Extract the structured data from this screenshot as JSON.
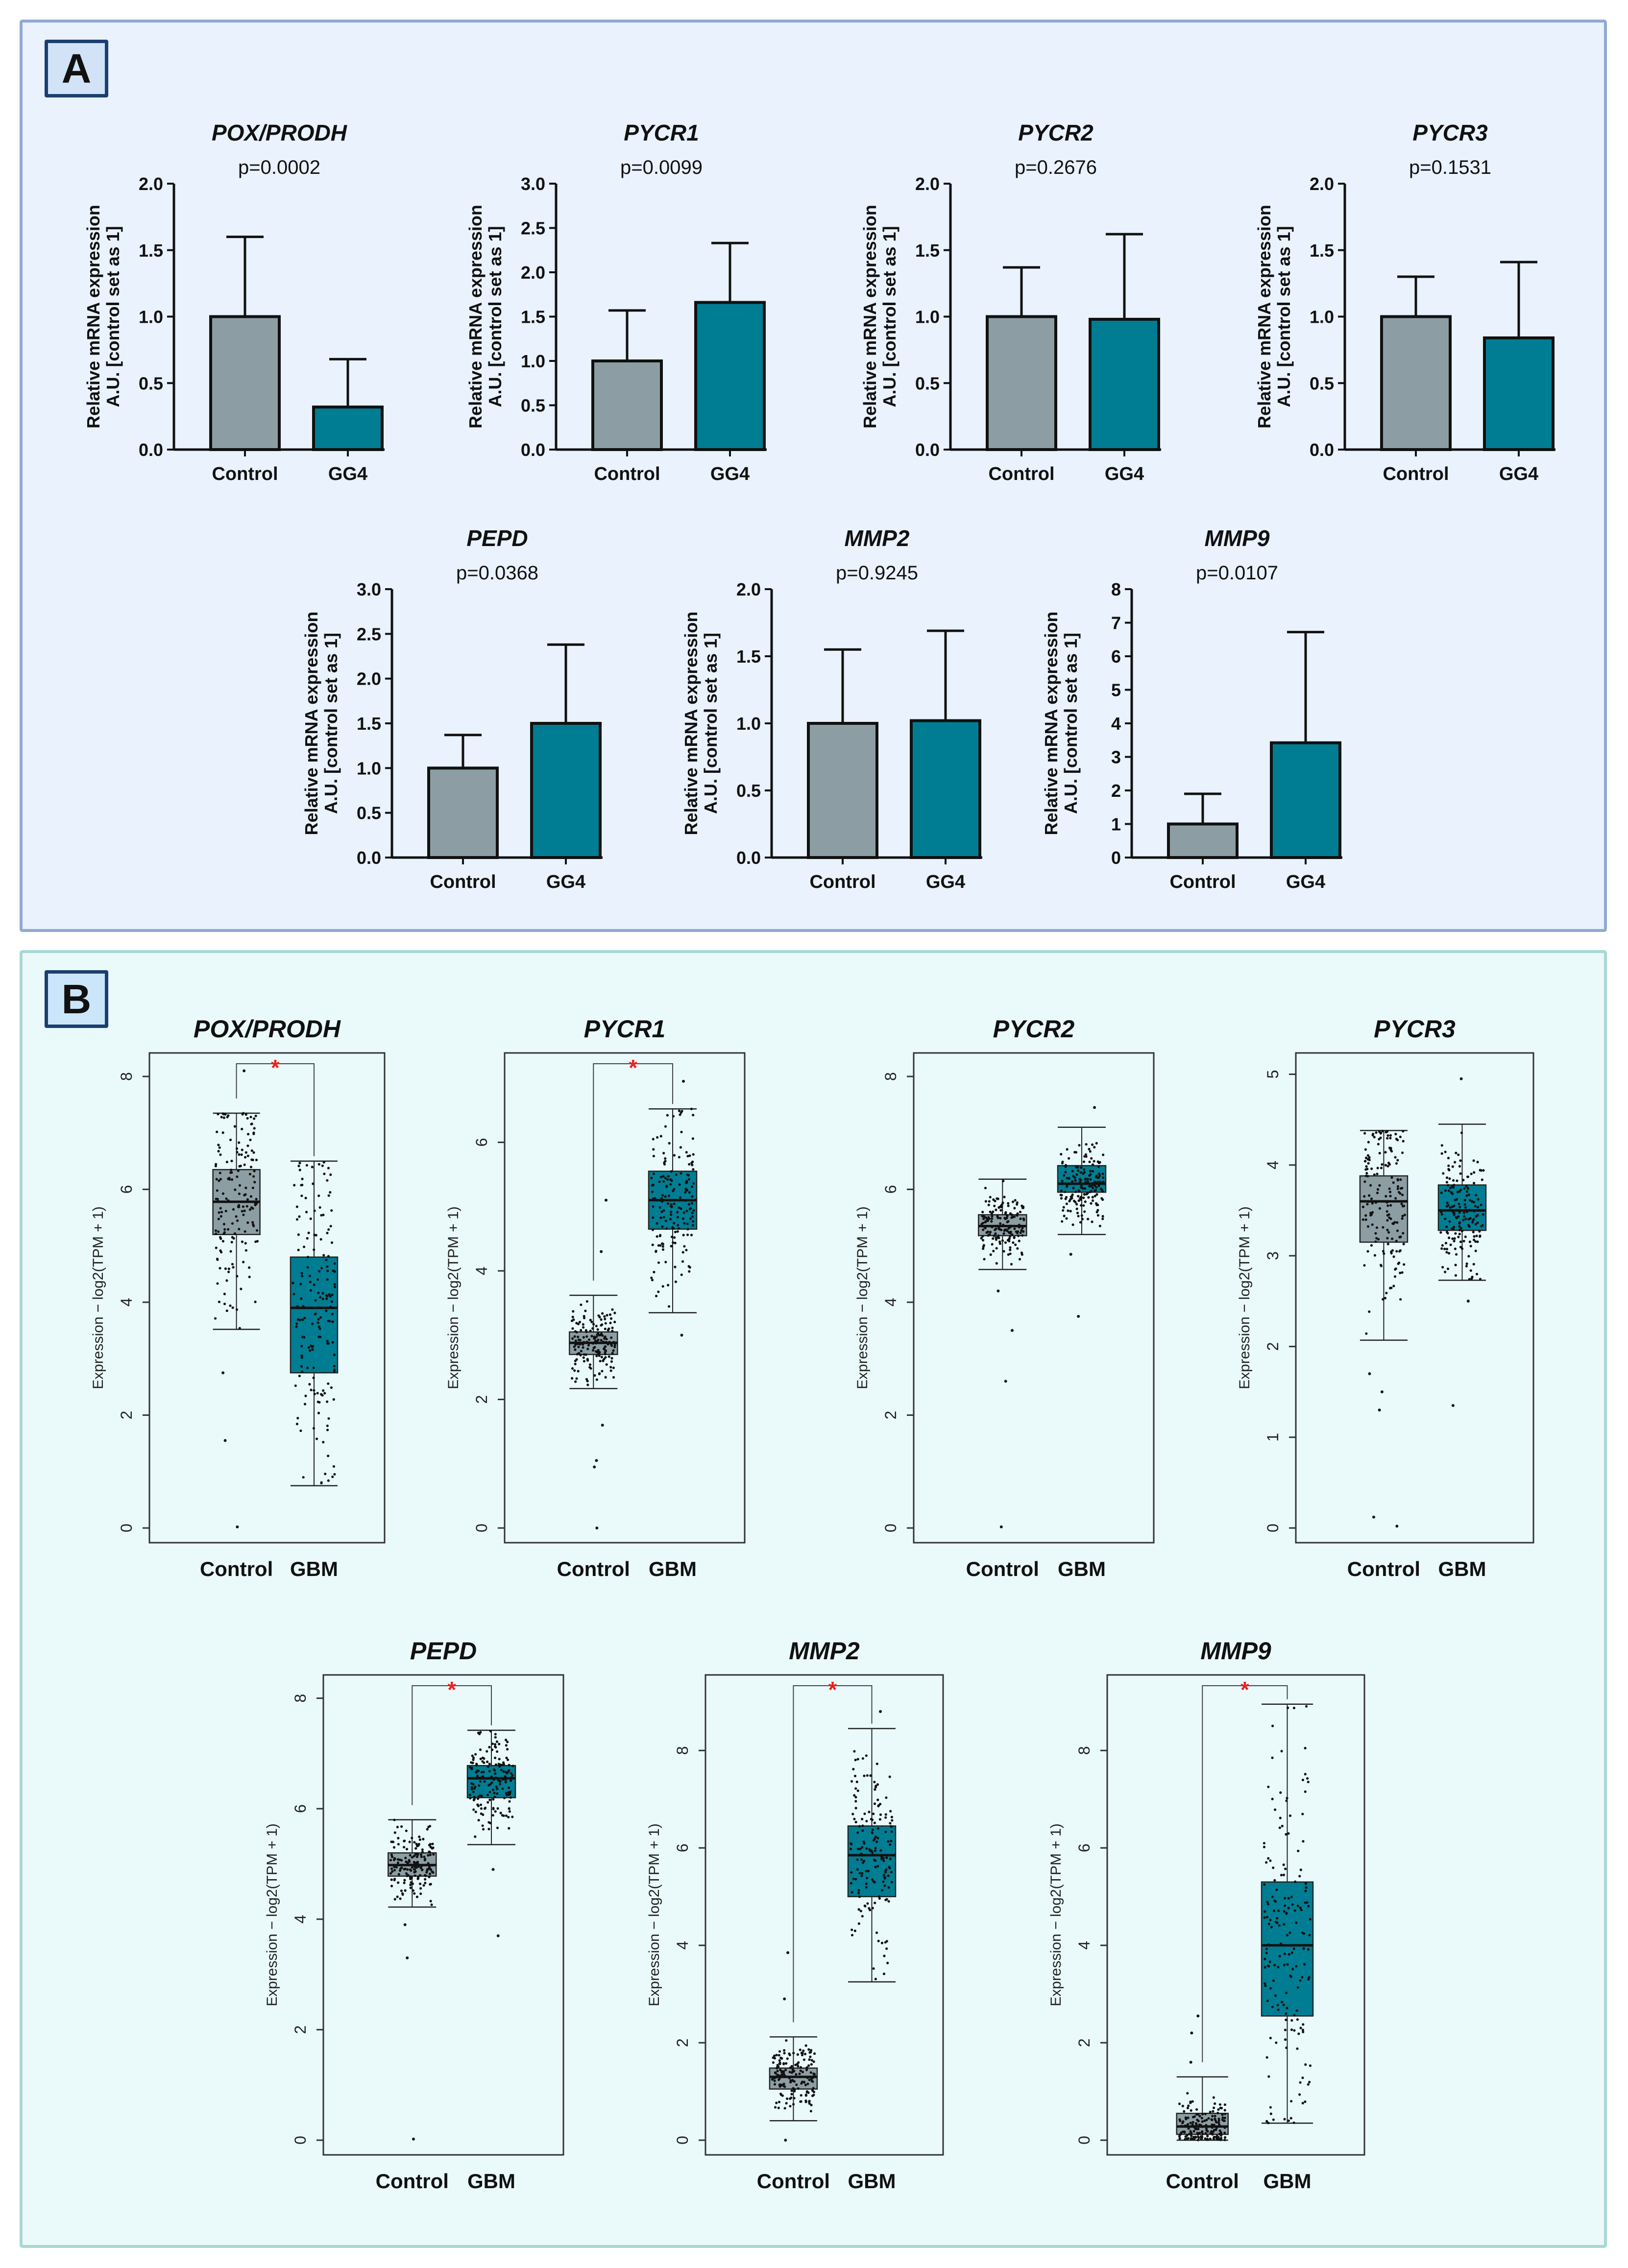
{
  "panels": {
    "a_label": "A",
    "b_label": "B"
  },
  "colors": {
    "control": "#8c9ea4",
    "treated": "#007d92",
    "star": "#e8211f",
    "frame": "#333333"
  },
  "chart_data": [
    {
      "type": "bar",
      "panel": "A",
      "title": "POX/PRODH",
      "pvalue": "p=0.0002",
      "ylabel": [
        "Relative mRNA expression",
        "A.U. [control set as 1]"
      ],
      "categories": [
        "Control",
        "GG4"
      ],
      "values": [
        1.0,
        0.32
      ],
      "errors": [
        0.6,
        0.36
      ],
      "ylim": [
        0,
        2.0
      ],
      "yticks": [
        "0.0",
        "0.5",
        "1.0",
        "1.5",
        "2.0"
      ]
    },
    {
      "type": "bar",
      "panel": "A",
      "title": "PYCR1",
      "pvalue": "p=0.0099",
      "ylabel": [
        "Relative mRNA expression",
        "A.U. [control set as 1]"
      ],
      "categories": [
        "Control",
        "GG4"
      ],
      "values": [
        1.0,
        1.66
      ],
      "errors": [
        0.57,
        0.67
      ],
      "ylim": [
        0,
        3.0
      ],
      "yticks": [
        "0.0",
        "0.5",
        "1.0",
        "1.5",
        "2.0",
        "2.5",
        "3.0"
      ]
    },
    {
      "type": "bar",
      "panel": "A",
      "title": "PYCR2",
      "pvalue": "p=0.2676",
      "ylabel": [
        "Relative mRNA expression",
        "A.U. [control set as 1]"
      ],
      "categories": [
        "Control",
        "GG4"
      ],
      "values": [
        1.0,
        0.98
      ],
      "errors": [
        0.37,
        0.64
      ],
      "ylim": [
        0,
        2.0
      ],
      "yticks": [
        "0.0",
        "0.5",
        "1.0",
        "1.5",
        "2.0"
      ]
    },
    {
      "type": "bar",
      "panel": "A",
      "title": "PYCR3",
      "pvalue": "p=0.1531",
      "ylabel": [
        "Relative mRNA expression",
        "A.U. [control set as 1]"
      ],
      "categories": [
        "Control",
        "GG4"
      ],
      "values": [
        1.0,
        0.84
      ],
      "errors": [
        0.3,
        0.57
      ],
      "ylim": [
        0,
        2.0
      ],
      "yticks": [
        "0.0",
        "0.5",
        "1.0",
        "1.5",
        "2.0"
      ]
    },
    {
      "type": "bar",
      "panel": "A",
      "title": "PEPD",
      "pvalue": "p=0.0368",
      "ylabel": [
        "Relative mRNA expression",
        "A.U. [control set as 1]"
      ],
      "categories": [
        "Control",
        "GG4"
      ],
      "values": [
        1.0,
        1.5
      ],
      "errors": [
        0.37,
        0.88
      ],
      "ylim": [
        0,
        3.0
      ],
      "yticks": [
        "0.0",
        "0.5",
        "1.0",
        "1.5",
        "2.0",
        "2.5",
        "3.0"
      ]
    },
    {
      "type": "bar",
      "panel": "A",
      "title": "MMP2",
      "pvalue": "p=0.9245",
      "ylabel": [
        "Relative mRNA expression",
        "A.U. [control set as 1]"
      ],
      "categories": [
        "Control",
        "GG4"
      ],
      "values": [
        1.0,
        1.02
      ],
      "errors": [
        0.55,
        0.67
      ],
      "ylim": [
        0,
        2.0
      ],
      "yticks": [
        "0.0",
        "0.5",
        "1.0",
        "1.5",
        "2.0"
      ]
    },
    {
      "type": "bar",
      "panel": "A",
      "title": "MMP9",
      "pvalue": "p=0.0107",
      "ylabel": [
        "Relative mRNA expression",
        "A.U. [control set as 1]"
      ],
      "categories": [
        "Control",
        "GG4"
      ],
      "values": [
        1.0,
        3.42
      ],
      "errors": [
        0.9,
        3.3
      ],
      "ylim": [
        0,
        8
      ],
      "yticks": [
        "0",
        "1",
        "2",
        "3",
        "4",
        "5",
        "6",
        "7",
        "8"
      ]
    },
    {
      "type": "box",
      "panel": "B",
      "title": "POX/PRODH",
      "ylabel": "Expression − log2(TPM + 1)",
      "categories": [
        "Control",
        "GBM"
      ],
      "ylim": [
        0,
        8.2
      ],
      "yticks": [
        "0",
        "2",
        "4",
        "6",
        "8"
      ],
      "significant": true,
      "star": "*",
      "boxes": [
        {
          "q1": 5.2,
          "median": 5.78,
          "q3": 6.35,
          "whisker_low": 3.52,
          "whisker_high": 7.35,
          "outliers": [
            0.02,
            1.55,
            2.75,
            8.1
          ]
        },
        {
          "q1": 2.75,
          "median": 3.9,
          "q3": 4.8,
          "whisker_low": 0.75,
          "whisker_high": 6.5,
          "outliers": []
        }
      ]
    },
    {
      "type": "box",
      "panel": "B",
      "title": "PYCR1",
      "ylabel": "Expression − log2(TPM + 1)",
      "categories": [
        "Control",
        "GBM"
      ],
      "ylim": [
        0,
        7.2
      ],
      "yticks": [
        "0",
        "2",
        "4",
        "6"
      ],
      "significant": true,
      "star": "*",
      "boxes": [
        {
          "q1": 2.7,
          "median": 2.88,
          "q3": 3.05,
          "whisker_low": 2.17,
          "whisker_high": 3.62,
          "outliers": [
            0.0,
            0.95,
            1.05,
            1.6,
            4.3,
            5.1
          ]
        },
        {
          "q1": 4.65,
          "median": 5.1,
          "q3": 5.55,
          "whisker_low": 3.35,
          "whisker_high": 6.52,
          "outliers": [
            3.0,
            6.95
          ]
        }
      ]
    },
    {
      "type": "box",
      "panel": "B",
      "title": "PYCR2",
      "ylabel": "Expression − log2(TPM + 1)",
      "categories": [
        "Control",
        "GBM"
      ],
      "ylim": [
        0,
        8.2
      ],
      "yticks": [
        "0",
        "2",
        "4",
        "6",
        "8"
      ],
      "significant": false,
      "boxes": [
        {
          "q1": 5.18,
          "median": 5.35,
          "q3": 5.55,
          "whisker_low": 4.58,
          "whisker_high": 6.18,
          "outliers": [
            0.02,
            2.6,
            3.5,
            4.2
          ]
        },
        {
          "q1": 5.95,
          "median": 6.1,
          "q3": 6.42,
          "whisker_low": 5.2,
          "whisker_high": 7.1,
          "outliers": [
            3.75,
            4.85,
            7.45
          ]
        }
      ]
    },
    {
      "type": "box",
      "panel": "B",
      "title": "PYCR3",
      "ylabel": "Expression − log2(TPM + 1)",
      "categories": [
        "Control",
        "GBM"
      ],
      "ylim": [
        0,
        5.1
      ],
      "yticks": [
        "0",
        "1",
        "2",
        "3",
        "4",
        "5"
      ],
      "significant": false,
      "boxes": [
        {
          "q1": 3.15,
          "median": 3.6,
          "q3": 3.88,
          "whisker_low": 2.07,
          "whisker_high": 4.38,
          "outliers": [
            0.02,
            0.12,
            1.3,
            1.5,
            1.7
          ]
        },
        {
          "q1": 3.28,
          "median": 3.5,
          "q3": 3.78,
          "whisker_low": 2.73,
          "whisker_high": 4.45,
          "outliers": [
            1.35,
            2.5,
            4.95
          ]
        }
      ]
    },
    {
      "type": "box",
      "panel": "B",
      "title": "PEPD",
      "ylabel": "Expression − log2(TPM + 1)",
      "categories": [
        "Control",
        "GBM"
      ],
      "ylim": [
        0,
        8.2
      ],
      "yticks": [
        "0",
        "2",
        "4",
        "6",
        "8"
      ],
      "significant": true,
      "star": "*",
      "boxes": [
        {
          "q1": 4.78,
          "median": 4.98,
          "q3": 5.2,
          "whisker_low": 4.22,
          "whisker_high": 5.8,
          "outliers": [
            0.02,
            3.3,
            3.9
          ]
        },
        {
          "q1": 6.2,
          "median": 6.55,
          "q3": 6.78,
          "whisker_low": 5.35,
          "whisker_high": 7.42,
          "outliers": [
            3.7,
            4.9
          ]
        }
      ]
    },
    {
      "type": "box",
      "panel": "B",
      "title": "MMP2",
      "ylabel": "Expression − log2(TPM + 1)",
      "categories": [
        "Control",
        "GBM"
      ],
      "ylim": [
        0,
        9.3
      ],
      "yticks": [
        "0",
        "2",
        "4",
        "6",
        "8"
      ],
      "significant": true,
      "star": "*",
      "boxes": [
        {
          "q1": 1.05,
          "median": 1.3,
          "q3": 1.48,
          "whisker_low": 0.4,
          "whisker_high": 2.12,
          "outliers": [
            0.0,
            2.9,
            3.85
          ]
        },
        {
          "q1": 5.0,
          "median": 5.85,
          "q3": 6.45,
          "whisker_low": 3.25,
          "whisker_high": 8.45,
          "outliers": [
            8.8
          ]
        }
      ]
    },
    {
      "type": "box",
      "panel": "B",
      "title": "MMP9",
      "ylabel": "Expression − log2(TPM + 1)",
      "categories": [
        "Control",
        "GBM"
      ],
      "ylim": [
        0,
        9.3
      ],
      "yticks": [
        "0",
        "2",
        "4",
        "6",
        "8"
      ],
      "significant": true,
      "star": "*",
      "boxes": [
        {
          "q1": 0.12,
          "median": 0.28,
          "q3": 0.55,
          "whisker_low": 0.0,
          "whisker_high": 1.3,
          "outliers": [
            1.6,
            2.2,
            2.55
          ]
        },
        {
          "q1": 2.55,
          "median": 4.0,
          "q3": 5.3,
          "whisker_low": 0.35,
          "whisker_high": 8.95,
          "outliers": []
        }
      ]
    }
  ]
}
